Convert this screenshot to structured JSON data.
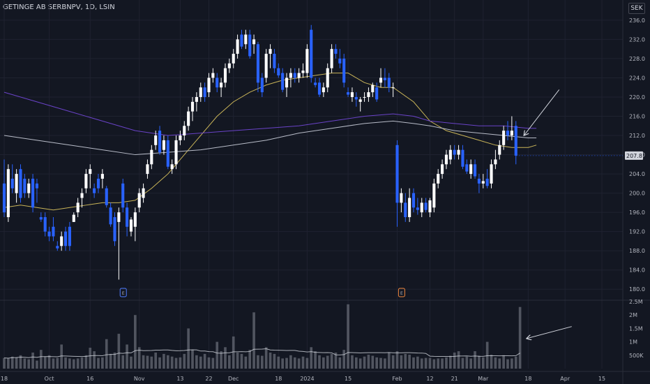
{
  "header": {
    "symbol_title": "GETINGE AB SERBNPV, 1D, LSIN",
    "currency": "SEK"
  },
  "colors": {
    "background": "#131722",
    "up_candle": "#ffffff",
    "down_candle": "#2962ff",
    "ma_yellow": "#c9b458",
    "ma_purple": "#6a43c8",
    "ma_white": "#b8bcc8",
    "volume_bar": "#5d606b",
    "grid": "#1f2230"
  },
  "chart_data": {
    "type": "candlestick",
    "title": "GETINGE AB SERBNPV, 1D, LSIN",
    "price_axis": {
      "range": [
        178,
        237
      ],
      "ticks": [
        180.0,
        184.0,
        188.0,
        192.0,
        196.0,
        200.0,
        204.0,
        208.0,
        212.0,
        216.0,
        220.0,
        224.0,
        228.0,
        232.0,
        236.0
      ],
      "tick_labels": [
        "180.0",
        "184.0",
        "188.0",
        "192.0",
        "196.0",
        "200.0",
        "204.0",
        "208.0",
        "212.0",
        "216.0",
        "220.0",
        "224.0",
        "228.0",
        "232.0",
        "236.0"
      ],
      "last_price_label": "207.8",
      "last_price": 207.8
    },
    "volume_axis": {
      "range": [
        0,
        2500000
      ],
      "ticks": [
        500000,
        1000000,
        1500000,
        2000000,
        2500000
      ],
      "tick_labels": [
        "500K",
        "1M",
        "1.5M",
        "2M",
        "2.5M"
      ]
    },
    "time_axis": {
      "labels": [
        "18",
        "Oct",
        "16",
        "Nov",
        "13",
        "22",
        "Dec",
        "18",
        "2024",
        "15",
        "Feb",
        "12",
        "21",
        "Mar",
        "18",
        "Apr",
        "15"
      ],
      "label_index": [
        0,
        11,
        21,
        33,
        43,
        50,
        56,
        67,
        74,
        84,
        96,
        104,
        110,
        117,
        128,
        137,
        146
      ]
    },
    "event_markers": [
      {
        "index": 29,
        "label": "E",
        "kind": "earnings"
      },
      {
        "index": 97,
        "label": "E",
        "kind": "earnings"
      }
    ],
    "grid": true,
    "candles": [
      [
        202.0,
        207.0,
        195.0,
        196.0
      ],
      [
        195.0,
        206.0,
        194.0,
        205.0
      ],
      [
        203.0,
        206.0,
        200.0,
        201.0
      ],
      [
        200.0,
        205.0,
        198.0,
        204.0
      ],
      [
        205.0,
        206.0,
        198.0,
        199.0
      ],
      [
        203.0,
        204.0,
        199.0,
        200.0
      ],
      [
        200.0,
        203.0,
        199.0,
        202.0
      ],
      [
        203.0,
        204.0,
        196.0,
        197.0
      ],
      [
        202.0,
        203.0,
        198.0,
        201.0
      ],
      [
        195.0,
        196.0,
        194.0,
        194.5
      ],
      [
        195.0,
        196.0,
        191.0,
        192.0
      ],
      [
        192.0,
        193.0,
        190.0,
        191.0
      ],
      [
        193.0,
        195.0,
        190.0,
        191.0
      ],
      [
        189.0,
        190.0,
        188.0,
        188.5
      ],
      [
        189.0,
        192.0,
        188.0,
        191.0
      ],
      [
        192.0,
        193.0,
        188.0,
        189.0
      ],
      [
        193.0,
        194.0,
        188.0,
        189.0
      ],
      [
        194.0,
        196.0,
        194.0,
        195.5
      ],
      [
        196.0,
        199.0,
        195.0,
        198.0
      ],
      [
        199.0,
        201.0,
        197.0,
        200.0
      ],
      [
        201.0,
        205.0,
        200.0,
        204.0
      ],
      [
        204.0,
        206.0,
        201.0,
        205.0
      ],
      [
        201.0,
        202.0,
        199.0,
        200.0
      ],
      [
        203.0,
        204.0,
        200.0,
        201.0
      ],
      [
        203.0,
        205.0,
        201.0,
        204.0
      ],
      [
        201.0,
        201.5,
        197.0,
        197.5
      ],
      [
        197.0,
        198.0,
        193.0,
        193.5
      ],
      [
        195.0,
        196.0,
        189.0,
        190.0
      ],
      [
        194.0,
        197.0,
        182.0,
        196.0
      ],
      [
        202.0,
        203.0,
        196.0,
        197.0
      ],
      [
        197.0,
        198.0,
        191.0,
        193.0
      ],
      [
        192.0,
        195.0,
        191.0,
        194.5
      ],
      [
        193.0,
        197.0,
        190.0,
        196.0
      ],
      [
        197.0,
        201.0,
        196.0,
        200.0
      ],
      [
        199.0,
        202.0,
        198.0,
        201.0
      ],
      [
        204.0,
        207.0,
        203.0,
        206.0
      ],
      [
        206.0,
        210.0,
        205.0,
        209.0
      ],
      [
        210.0,
        213.0,
        209.0,
        212.0
      ],
      [
        213.0,
        214.0,
        208.0,
        208.5
      ],
      [
        209.0,
        212.0,
        208.0,
        211.0
      ],
      [
        211.0,
        212.0,
        205.0,
        205.5
      ],
      [
        205.0,
        207.0,
        204.0,
        206.0
      ],
      [
        206.0,
        212.0,
        205.0,
        211.0
      ],
      [
        211.0,
        213.0,
        210.0,
        212.0
      ],
      [
        212.0,
        215.0,
        211.0,
        214.0
      ],
      [
        214.0,
        218.0,
        213.0,
        217.0
      ],
      [
        217.0,
        220.0,
        215.0,
        219.0
      ],
      [
        219.0,
        221.0,
        217.0,
        220.0
      ],
      [
        220.0,
        223.0,
        219.0,
        222.0
      ],
      [
        222.0,
        223.0,
        219.0,
        220.0
      ],
      [
        221.0,
        225.0,
        220.0,
        224.0
      ],
      [
        224.0,
        226.0,
        223.0,
        225.0
      ],
      [
        224.0,
        225.0,
        221.0,
        222.0
      ],
      [
        222.0,
        224.0,
        220.0,
        223.0
      ],
      [
        223.0,
        227.0,
        222.0,
        226.0
      ],
      [
        226.0,
        228.0,
        225.0,
        227.0
      ],
      [
        227.0,
        230.0,
        226.0,
        229.0
      ],
      [
        229.0,
        233.0,
        228.0,
        232.0
      ],
      [
        233.0,
        234.0,
        230.0,
        230.5
      ],
      [
        231.0,
        234.0,
        230.0,
        233.0
      ],
      [
        233.0,
        234.0,
        228.0,
        228.5
      ],
      [
        231.0,
        233.0,
        229.0,
        232.0
      ],
      [
        231.0,
        231.5,
        221.0,
        223.0
      ],
      [
        224.0,
        225.0,
        220.0,
        221.0
      ],
      [
        224.0,
        230.0,
        223.0,
        229.0
      ],
      [
        229.0,
        231.0,
        226.0,
        230.0
      ],
      [
        229.0,
        230.0,
        225.0,
        226.0
      ],
      [
        226.0,
        227.0,
        224.0,
        224.5
      ],
      [
        225.0,
        226.0,
        221.0,
        221.5
      ],
      [
        222.0,
        225.0,
        220.0,
        224.0
      ],
      [
        224.0,
        226.0,
        222.0,
        225.0
      ],
      [
        225.0,
        226.0,
        223.0,
        224.0
      ],
      [
        224.0,
        226.0,
        223.0,
        225.0
      ],
      [
        225.0,
        227.0,
        224.0,
        225.5
      ],
      [
        225.0,
        231.0,
        224.0,
        230.0
      ],
      [
        234.0,
        235.0,
        223.0,
        224.0
      ],
      [
        223.0,
        224.0,
        222.0,
        222.5
      ],
      [
        223.0,
        224.0,
        220.0,
        220.5
      ],
      [
        221.0,
        223.0,
        220.0,
        222.0
      ],
      [
        222.0,
        227.0,
        221.0,
        226.0
      ],
      [
        226.0,
        231.0,
        225.0,
        230.0
      ],
      [
        230.0,
        231.0,
        228.0,
        229.0
      ],
      [
        228.0,
        230.0,
        226.0,
        227.0
      ],
      [
        228.0,
        229.0,
        222.0,
        223.0
      ],
      [
        221.0,
        222.0,
        220.0,
        220.5
      ],
      [
        220.0,
        222.0,
        219.0,
        221.0
      ],
      [
        220.0,
        221.0,
        218.0,
        219.5
      ],
      [
        219.0,
        220.0,
        217.0,
        219.5
      ],
      [
        220.0,
        221.0,
        219.0,
        220.0
      ],
      [
        220.0,
        222.0,
        219.0,
        221.0
      ],
      [
        221.0,
        223.0,
        220.0,
        222.5
      ],
      [
        222.0,
        223.0,
        219.0,
        219.5
      ],
      [
        223.0,
        226.0,
        222.0,
        224.0
      ],
      [
        224.0,
        226.0,
        222.0,
        223.5
      ],
      [
        224.0,
        225.0,
        221.0,
        222.0
      ],
      [
        222.0,
        223.0,
        220.0,
        222.0
      ],
      [
        210.0,
        211.0,
        193.0,
        198.0
      ],
      [
        198.0,
        201.0,
        196.0,
        200.0
      ],
      [
        198.0,
        200.0,
        194.0,
        195.0
      ],
      [
        195.0,
        201.0,
        194.0,
        199.0
      ],
      [
        200.0,
        201.0,
        196.0,
        197.0
      ],
      [
        197.0,
        199.0,
        195.5,
        196.5
      ],
      [
        196.0,
        199.0,
        195.0,
        198.0
      ],
      [
        198.0,
        199.0,
        196.0,
        196.5
      ],
      [
        196.0,
        199.0,
        195.0,
        198.5
      ],
      [
        197.0,
        203.0,
        196.0,
        202.0
      ],
      [
        202.0,
        205.0,
        201.0,
        204.0
      ],
      [
        204.0,
        207.0,
        203.0,
        206.0
      ],
      [
        206.0,
        209.0,
        205.0,
        208.0
      ],
      [
        207.0,
        210.0,
        206.0,
        209.0
      ],
      [
        209.0,
        210.0,
        207.0,
        208.0
      ],
      [
        208.0,
        210.0,
        207.0,
        209.0
      ],
      [
        209.0,
        210.0,
        205.0,
        205.5
      ],
      [
        206.0,
        207.0,
        204.0,
        204.5
      ],
      [
        204.0,
        207.0,
        203.0,
        206.0
      ],
      [
        206.0,
        207.0,
        203.0,
        203.5
      ],
      [
        203.0,
        204.0,
        200.0,
        202.0
      ],
      [
        202.0,
        204.0,
        201.0,
        202.5
      ],
      [
        203.0,
        205.0,
        201.0,
        201.5
      ],
      [
        202.0,
        207.0,
        201.0,
        206.0
      ],
      [
        206.0,
        209.0,
        205.0,
        207.0
      ],
      [
        208.0,
        211.0,
        207.0,
        210.0
      ],
      [
        210.0,
        214.0,
        209.0,
        213.0
      ],
      [
        213.0,
        215.0,
        211.0,
        212.0
      ],
      [
        212.0,
        216.0,
        211.0,
        213.0
      ],
      [
        214.0,
        215.0,
        206.0,
        207.8
      ]
    ],
    "volume": [
      400000,
      380000,
      450000,
      420000,
      500000,
      380000,
      350000,
      600000,
      300000,
      700000,
      450000,
      500000,
      380000,
      400000,
      900000,
      420000,
      380000,
      350000,
      380000,
      420000,
      500000,
      780000,
      650000,
      400000,
      420000,
      1100000,
      550000,
      600000,
      1300000,
      500000,
      900000,
      450000,
      2000000,
      800000,
      500000,
      480000,
      450000,
      600000,
      420000,
      550000,
      500000,
      450000,
      400000,
      420000,
      550000,
      1500000,
      700000,
      500000,
      450000,
      550000,
      420000,
      400000,
      1000000,
      650000,
      800000,
      500000,
      1200000,
      600000,
      550000,
      450000,
      700000,
      2100000,
      500000,
      480000,
      800000,
      600000,
      550000,
      450000,
      380000,
      400000,
      500000,
      420000,
      380000,
      450000,
      400000,
      800000,
      650000,
      500000,
      420000,
      480000,
      550000,
      600000,
      420000,
      700000,
      2400000,
      500000,
      420000,
      380000,
      450000,
      520000,
      480000,
      420000,
      400000,
      380000,
      600000,
      500000,
      650000,
      500000,
      550000,
      520000,
      420000,
      450000,
      380000,
      400000,
      400000,
      350000,
      380000,
      380000,
      420000,
      480000,
      600000,
      650000,
      400000,
      450000,
      380000,
      650000,
      480000,
      420000,
      1000000,
      520000,
      420000,
      380000,
      500000,
      350000,
      380000,
      450000,
      2300000
    ],
    "moving_averages": [
      {
        "color": "#c9b458",
        "points": [
          [
            0,
            197.0
          ],
          [
            4,
            197.5
          ],
          [
            8,
            197.0
          ],
          [
            12,
            196.5
          ],
          [
            16,
            197.0
          ],
          [
            20,
            197.5
          ],
          [
            24,
            198.0
          ],
          [
            28,
            198.0
          ],
          [
            32,
            198.5
          ],
          [
            36,
            201.0
          ],
          [
            40,
            204.0
          ],
          [
            44,
            208.0
          ],
          [
            48,
            212.0
          ],
          [
            52,
            216.0
          ],
          [
            56,
            219.0
          ],
          [
            60,
            221.0
          ],
          [
            64,
            222.5
          ],
          [
            68,
            223.5
          ],
          [
            72,
            224.0
          ],
          [
            76,
            224.5
          ],
          [
            80,
            225.0
          ],
          [
            84,
            225.0
          ],
          [
            88,
            223.0
          ],
          [
            92,
            222.0
          ],
          [
            95,
            222.0
          ],
          [
            100,
            219.0
          ],
          [
            104,
            215.0
          ],
          [
            108,
            213.0
          ],
          [
            112,
            212.0
          ],
          [
            116,
            211.0
          ],
          [
            120,
            210.0
          ],
          [
            124,
            209.5
          ],
          [
            128,
            209.5
          ],
          [
            130,
            210.0
          ]
        ]
      },
      {
        "color": "#6a43c8",
        "points": [
          [
            0,
            221.0
          ],
          [
            8,
            219.0
          ],
          [
            16,
            217.0
          ],
          [
            24,
            215.0
          ],
          [
            32,
            213.0
          ],
          [
            40,
            212.0
          ],
          [
            48,
            212.5
          ],
          [
            56,
            213.0
          ],
          [
            64,
            213.5
          ],
          [
            72,
            214.0
          ],
          [
            80,
            215.0
          ],
          [
            88,
            216.0
          ],
          [
            95,
            216.5
          ],
          [
            100,
            216.0
          ],
          [
            104,
            215.0
          ],
          [
            110,
            214.5
          ],
          [
            116,
            214.0
          ],
          [
            122,
            214.0
          ],
          [
            128,
            213.5
          ],
          [
            130,
            213.5
          ]
        ]
      },
      {
        "color": "#b8bcc8",
        "points": [
          [
            0,
            212.0
          ],
          [
            8,
            211.0
          ],
          [
            16,
            210.0
          ],
          [
            24,
            209.0
          ],
          [
            32,
            208.0
          ],
          [
            40,
            208.5
          ],
          [
            48,
            209.0
          ],
          [
            56,
            210.0
          ],
          [
            64,
            211.0
          ],
          [
            72,
            212.5
          ],
          [
            80,
            213.5
          ],
          [
            88,
            214.5
          ],
          [
            95,
            215.0
          ],
          [
            100,
            214.5
          ],
          [
            104,
            214.0
          ],
          [
            110,
            213.0
          ],
          [
            116,
            212.5
          ],
          [
            122,
            212.0
          ],
          [
            128,
            211.5
          ],
          [
            130,
            211.5
          ]
        ]
      }
    ],
    "annotation_arrows": [
      {
        "target": "last-candle",
        "direction": "down-left"
      },
      {
        "target": "last-volume-bar",
        "direction": "left"
      }
    ]
  }
}
